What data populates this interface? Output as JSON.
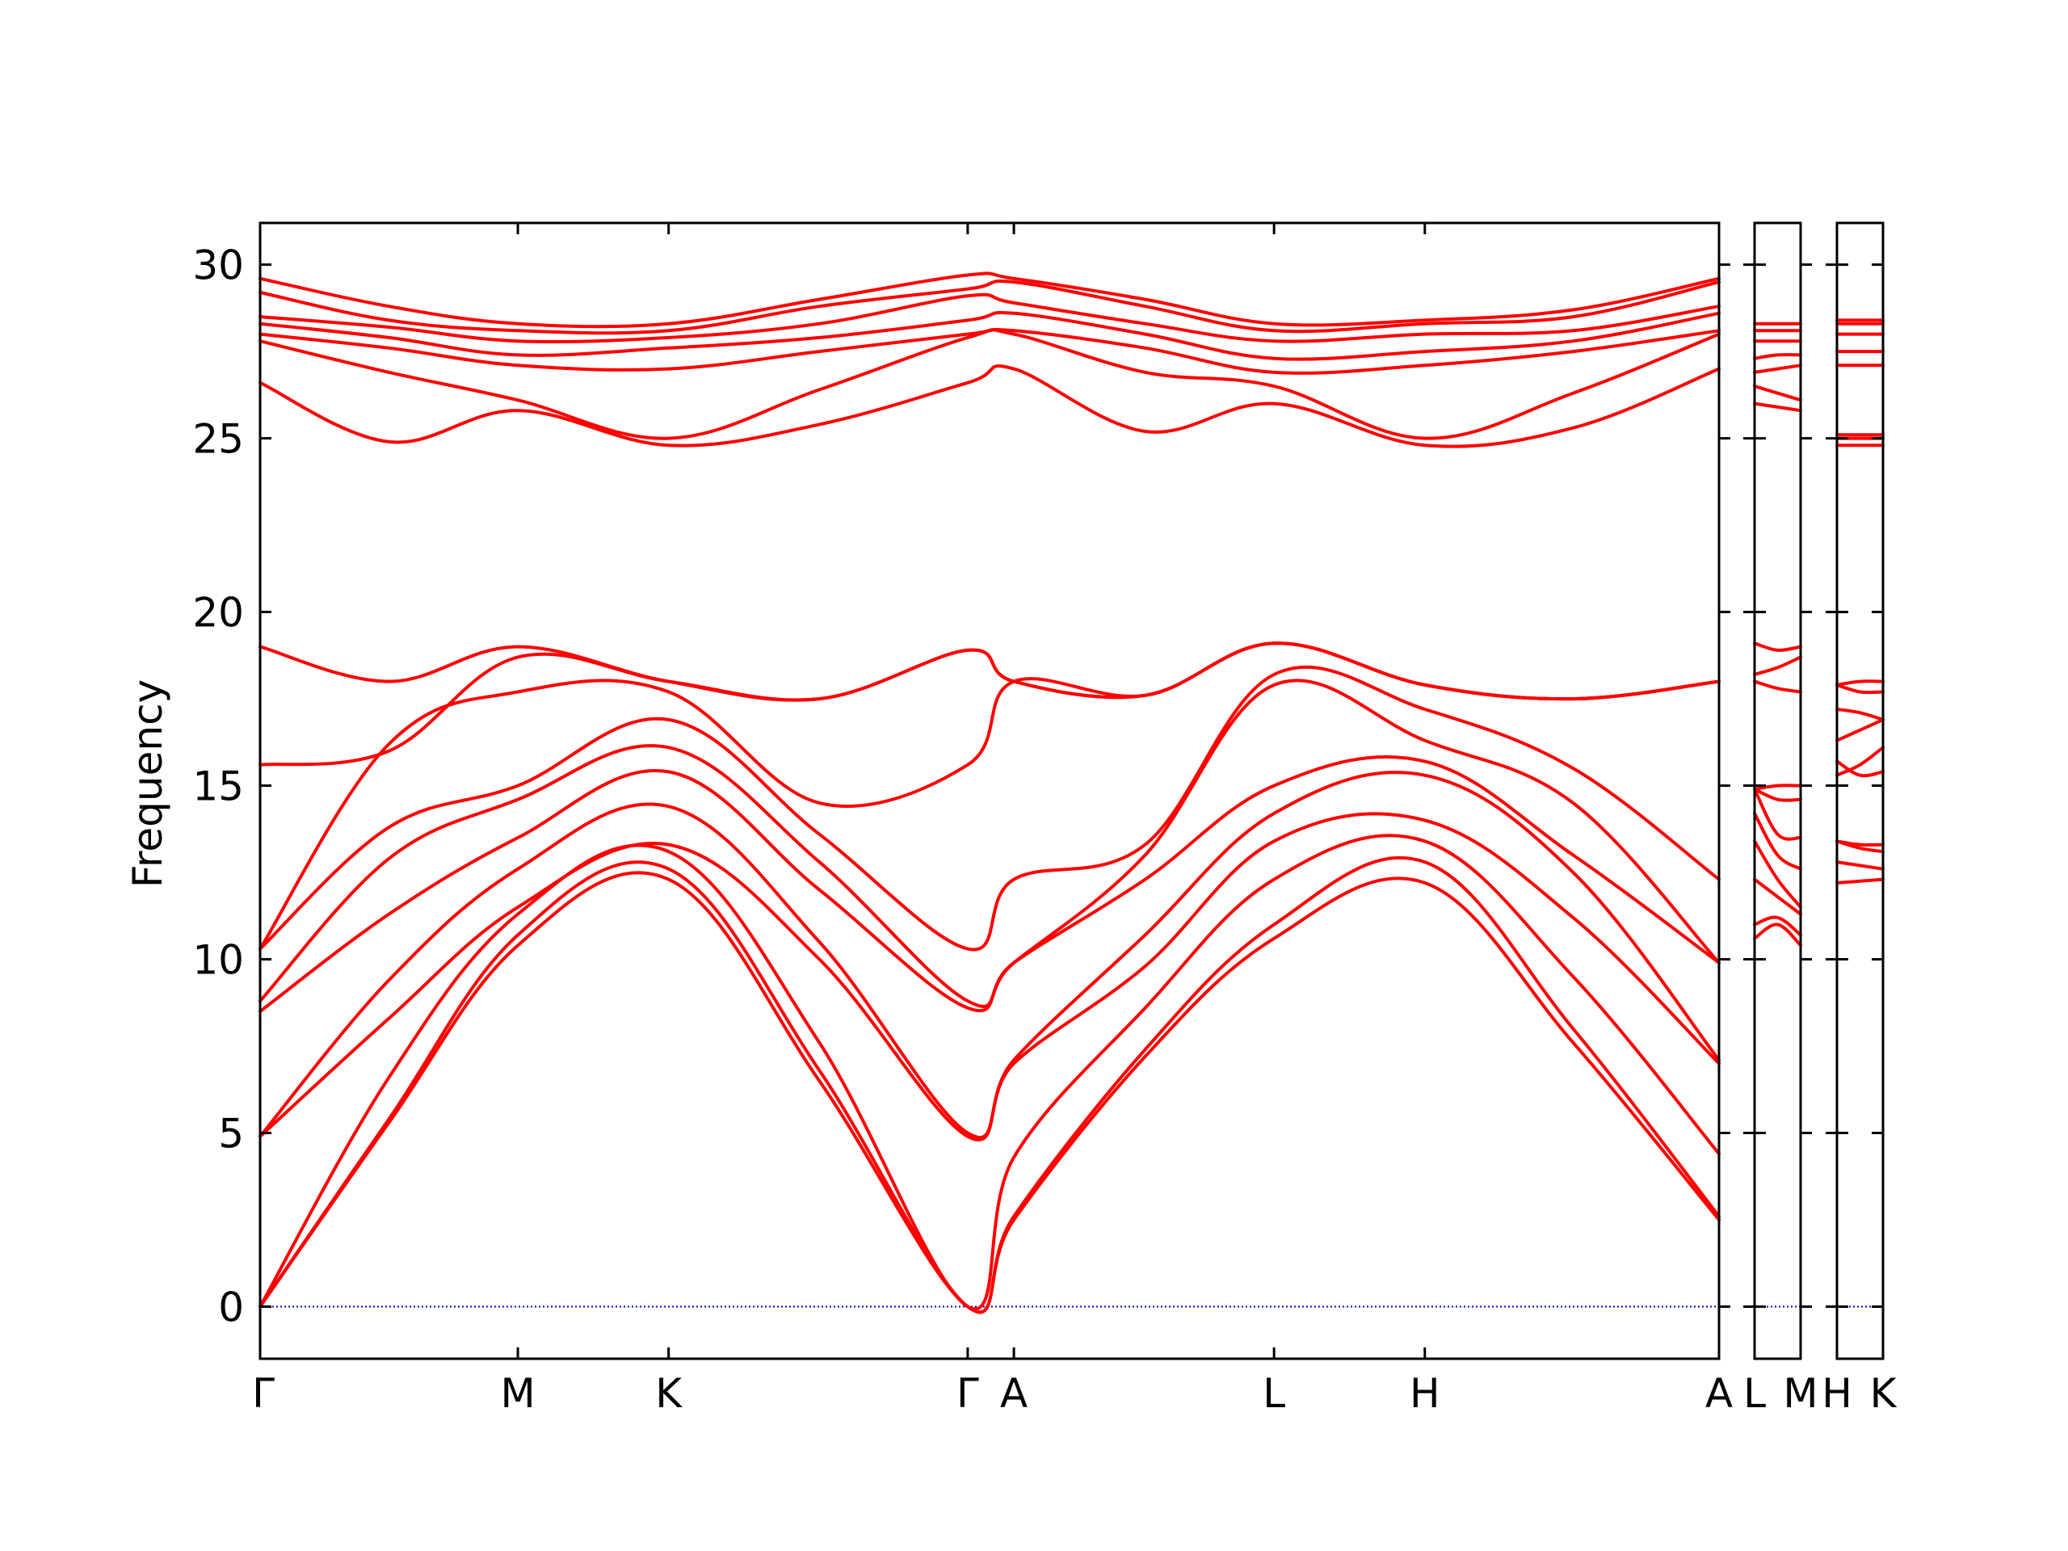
{
  "chart_data": {
    "type": "line",
    "title": "",
    "xlabel": "",
    "ylabel": "Frequency",
    "ylim": [
      -1.5,
      31.2
    ],
    "yticks": [
      0,
      5,
      10,
      15,
      20,
      25,
      30
    ],
    "grid": false,
    "legend": "none",
    "colors": {
      "band": "#ff0000",
      "zero_line": "#0000cc",
      "frame": "#000000"
    },
    "panels": [
      {
        "name": "main",
        "x": [
          0.0,
          3.0
        ],
        "ticks": [
          {
            "label": "Γ",
            "x": 0.0
          },
          {
            "label": "M",
            "x": 0.53
          },
          {
            "label": "K",
            "x": 0.84
          },
          {
            "label": "Γ",
            "x": 1.455
          },
          {
            "label": "A",
            "x": 1.55
          },
          {
            "label": "L",
            "x": 2.085
          },
          {
            "label": "H",
            "x": 2.395
          },
          {
            "label": "A",
            "x": 3.0
          }
        ],
        "series": [
          {
            "x": [
              0,
              0.265,
              0.53,
              0.84,
              1.15,
              1.455,
              1.55,
              1.82,
              2.085,
              2.395,
              2.7,
              3.0
            ],
            "values": [
              0,
              5.3,
              10.4,
              12.3,
              6.5,
              0,
              2.5,
              7.2,
              10.6,
              12.2,
              7.6,
              2.5
            ]
          },
          {
            "x": [
              0,
              0.265,
              0.53,
              0.84,
              1.15,
              1.455,
              1.55,
              1.82,
              2.085,
              2.395,
              2.7,
              3.0
            ],
            "values": [
              0,
              5.4,
              10.7,
              12.6,
              6.8,
              0,
              2.6,
              7.4,
              11.0,
              12.8,
              8.0,
              2.6
            ]
          },
          {
            "x": [
              0,
              0.265,
              0.53,
              0.84,
              1.15,
              1.455,
              1.55,
              1.82,
              2.085,
              2.395,
              2.7,
              3.0
            ],
            "values": [
              0,
              6.6,
              11.3,
              13.1,
              7.6,
              0,
              4.3,
              8.6,
              12.3,
              13.4,
              9.5,
              4.4
            ]
          },
          {
            "x": [
              0,
              0.265,
              0.53,
              0.84,
              1.15,
              1.455,
              1.55,
              1.82,
              2.085,
              2.395,
              2.7,
              3.0
            ],
            "values": [
              4.9,
              8.3,
              11.5,
              13.3,
              10.0,
              4.9,
              7.0,
              9.8,
              13.4,
              14.0,
              11.2,
              7.0
            ]
          },
          {
            "x": [
              0,
              0.265,
              0.53,
              0.84,
              1.15,
              1.455,
              1.55,
              1.82,
              2.085,
              2.395,
              2.7,
              3.0
            ],
            "values": [
              4.9,
              9.4,
              12.6,
              14.4,
              10.5,
              5.0,
              7.1,
              10.7,
              14.2,
              15.3,
              12.5,
              7.1
            ]
          },
          {
            "x": [
              0,
              0.265,
              0.53,
              0.84,
              1.15,
              1.455,
              1.55,
              1.82,
              2.085,
              2.395,
              2.7,
              3.0
            ],
            "values": [
              8.5,
              11.3,
              13.5,
              15.4,
              12.0,
              8.6,
              9.9,
              12.3,
              15.0,
              15.7,
              13.0,
              9.9
            ]
          },
          {
            "x": [
              0,
              0.265,
              0.53,
              0.84,
              1.15,
              1.455,
              1.55,
              1.82,
              2.085,
              2.395,
              2.7,
              3.0
            ],
            "values": [
              8.8,
              12.9,
              14.6,
              16.1,
              12.8,
              8.8,
              9.9,
              13.0,
              17.9,
              16.3,
              14.5,
              9.9
            ]
          },
          {
            "x": [
              0,
              0.265,
              0.53,
              0.84,
              1.15,
              1.455,
              1.55,
              1.82,
              2.085,
              2.395,
              2.7,
              3.0
            ],
            "values": [
              10.3,
              13.8,
              15.0,
              16.9,
              13.6,
              10.3,
              12.3,
              13.3,
              18.2,
              17.2,
              15.5,
              12.3
            ]
          },
          {
            "x": [
              0,
              0.265,
              0.53,
              0.84,
              1.15,
              1.455,
              1.55,
              1.82,
              2.085,
              2.395,
              2.7,
              3.0
            ],
            "values": [
              10.3,
              16.2,
              17.7,
              17.7,
              14.5,
              15.6,
              18.0,
              17.6,
              19.1,
              17.9,
              17.5,
              18.0
            ]
          },
          {
            "x": [
              0,
              0.265,
              0.53,
              0.84,
              1.15,
              1.455,
              1.55,
              1.82,
              2.085,
              2.395,
              2.7,
              3.0
            ],
            "values": [
              15.6,
              16.0,
              18.7,
              18.0,
              17.5,
              18.9,
              18.0,
              17.6,
              19.1,
              17.9,
              17.5,
              18.0
            ]
          },
          {
            "x": [
              0,
              0.265,
              0.53,
              0.84,
              1.15,
              1.455,
              1.55,
              1.82,
              2.085,
              2.395,
              2.7,
              3.0
            ],
            "values": [
              19.0,
              18.0,
              19.0,
              18.0,
              17.5,
              18.9,
              18.0,
              17.6,
              19.1,
              17.9,
              17.5,
              18.0
            ]
          },
          {
            "x": [
              0,
              0.265,
              0.53,
              0.84,
              1.15,
              1.455,
              1.55,
              1.82,
              2.085,
              2.395,
              2.7,
              3.0
            ],
            "values": [
              26.6,
              24.9,
              25.8,
              24.8,
              25.4,
              26.6,
              27.0,
              25.2,
              26.0,
              24.8,
              25.3,
              27.0
            ]
          },
          {
            "x": [
              0,
              0.265,
              0.53,
              0.84,
              1.15,
              1.455,
              1.55,
              1.82,
              2.085,
              2.395,
              2.7,
              3.0
            ],
            "values": [
              27.8,
              26.9,
              26.1,
              25.0,
              26.4,
              27.9,
              28.0,
              26.9,
              26.5,
              25.0,
              26.3,
              28.0
            ]
          },
          {
            "x": [
              0,
              0.265,
              0.53,
              0.84,
              1.15,
              1.455,
              1.55,
              1.82,
              2.085,
              2.395,
              2.7,
              3.0
            ],
            "values": [
              28.0,
              27.6,
              27.1,
              27.0,
              27.5,
              28.0,
              28.1,
              27.6,
              26.9,
              27.1,
              27.5,
              28.1
            ]
          },
          {
            "x": [
              0,
              0.265,
              0.53,
              0.84,
              1.15,
              1.455,
              1.55,
              1.82,
              2.085,
              2.395,
              2.7,
              3.0
            ],
            "values": [
              28.3,
              27.9,
              27.4,
              27.6,
              27.9,
              28.4,
              28.6,
              28.0,
              27.3,
              27.5,
              27.8,
              28.6
            ]
          },
          {
            "x": [
              0,
              0.265,
              0.53,
              0.84,
              1.15,
              1.455,
              1.55,
              1.82,
              2.085,
              2.395,
              2.7,
              3.0
            ],
            "values": [
              28.5,
              28.2,
              27.8,
              27.9,
              28.3,
              29.1,
              28.9,
              28.3,
              27.8,
              28.0,
              28.1,
              28.8
            ]
          },
          {
            "x": [
              0,
              0.265,
              0.53,
              0.84,
              1.15,
              1.455,
              1.55,
              1.82,
              2.085,
              2.395,
              2.7,
              3.0
            ],
            "values": [
              29.2,
              28.4,
              28.1,
              28.1,
              28.8,
              29.3,
              29.5,
              28.8,
              28.1,
              28.3,
              28.5,
              29.5
            ]
          },
          {
            "x": [
              0,
              0.265,
              0.53,
              0.84,
              1.15,
              1.455,
              1.55,
              1.82,
              2.085,
              2.395,
              2.7,
              3.0
            ],
            "values": [
              29.6,
              28.8,
              28.3,
              28.3,
              29.0,
              29.7,
              29.6,
              29.0,
              28.3,
              28.4,
              28.7,
              29.6
            ]
          }
        ]
      },
      {
        "name": "L-M",
        "x": [
          0.0,
          1.0
        ],
        "ticks": [
          {
            "label": "L",
            "x": 0.0
          },
          {
            "label": "M",
            "x": 1.0
          }
        ],
        "series": [
          {
            "x": [
              0,
              0.5,
              1
            ],
            "values": [
              10.6,
              11.0,
              10.4
            ]
          },
          {
            "x": [
              0,
              0.5,
              1
            ],
            "values": [
              11.0,
              11.2,
              10.7
            ]
          },
          {
            "x": [
              0,
              0.5,
              1
            ],
            "values": [
              12.3,
              11.8,
              11.3
            ]
          },
          {
            "x": [
              0,
              0.5,
              1
            ],
            "values": [
              13.4,
              12.3,
              11.5
            ]
          },
          {
            "x": [
              0,
              0.5,
              1
            ],
            "values": [
              14.2,
              13.0,
              12.6
            ]
          },
          {
            "x": [
              0,
              0.5,
              1
            ],
            "values": [
              14.9,
              13.6,
              13.5
            ]
          },
          {
            "x": [
              0,
              0.5,
              1
            ],
            "values": [
              14.9,
              14.6,
              14.6
            ]
          },
          {
            "x": [
              0,
              0.5,
              1
            ],
            "values": [
              14.9,
              15.0,
              15.0
            ]
          },
          {
            "x": [
              0,
              0.5,
              1
            ],
            "values": [
              18.0,
              17.8,
              17.7
            ]
          },
          {
            "x": [
              0,
              0.5,
              1
            ],
            "values": [
              18.2,
              18.4,
              18.7
            ]
          },
          {
            "x": [
              0,
              0.5,
              1
            ],
            "values": [
              19.1,
              18.9,
              19.0
            ]
          },
          {
            "x": [
              0,
              0.5,
              1
            ],
            "values": [
              26.0,
              25.9,
              25.8
            ]
          },
          {
            "x": [
              0,
              0.5,
              1
            ],
            "values": [
              26.5,
              26.3,
              26.1
            ]
          },
          {
            "x": [
              0,
              0.5,
              1
            ],
            "values": [
              26.9,
              27.0,
              27.1
            ]
          },
          {
            "x": [
              0,
              0.5,
              1
            ],
            "values": [
              27.3,
              27.4,
              27.4
            ]
          },
          {
            "x": [
              0,
              0.5,
              1
            ],
            "values": [
              27.8,
              27.8,
              27.8
            ]
          },
          {
            "x": [
              0,
              0.5,
              1
            ],
            "values": [
              28.1,
              28.1,
              28.1
            ]
          },
          {
            "x": [
              0,
              0.5,
              1
            ],
            "values": [
              28.3,
              28.3,
              28.3
            ]
          }
        ]
      },
      {
        "name": "H-K",
        "x": [
          0.0,
          1.0
        ],
        "ticks": [
          {
            "label": "H",
            "x": 0.0
          },
          {
            "label": "K",
            "x": 1.0
          }
        ],
        "series": [
          {
            "x": [
              0,
              0.5,
              1
            ],
            "values": [
              12.2,
              12.25,
              12.3
            ]
          },
          {
            "x": [
              0,
              0.5,
              1
            ],
            "values": [
              12.8,
              12.7,
              12.6
            ]
          },
          {
            "x": [
              0,
              0.5,
              1
            ],
            "values": [
              13.4,
              13.2,
              13.1
            ]
          },
          {
            "x": [
              0,
              0.5,
              1
            ],
            "values": [
              13.4,
              13.3,
              13.3
            ]
          },
          {
            "x": [
              0,
              0.5,
              1
            ],
            "values": [
              15.3,
              15.6,
              16.1
            ]
          },
          {
            "x": [
              0,
              0.5,
              1
            ],
            "values": [
              15.7,
              15.3,
              15.4
            ]
          },
          {
            "x": [
              0,
              0.5,
              1
            ],
            "values": [
              16.3,
              16.6,
              16.9
            ]
          },
          {
            "x": [
              0,
              0.5,
              1
            ],
            "values": [
              17.2,
              17.1,
              16.9
            ]
          },
          {
            "x": [
              0,
              0.5,
              1
            ],
            "values": [
              17.9,
              17.7,
              17.7
            ]
          },
          {
            "x": [
              0,
              0.5,
              1
            ],
            "values": [
              17.9,
              18.0,
              18.0
            ]
          },
          {
            "x": [
              0,
              0.5,
              1
            ],
            "values": [
              24.8,
              24.8,
              24.8
            ]
          },
          {
            "x": [
              0,
              0.5,
              1
            ],
            "values": [
              25.0,
              25.0,
              25.0
            ]
          },
          {
            "x": [
              0,
              0.5,
              1
            ],
            "values": [
              25.1,
              25.1,
              25.1
            ]
          },
          {
            "x": [
              0,
              0.5,
              1
            ],
            "values": [
              27.1,
              27.1,
              27.1
            ]
          },
          {
            "x": [
              0,
              0.5,
              1
            ],
            "values": [
              27.5,
              27.5,
              27.5
            ]
          },
          {
            "x": [
              0,
              0.5,
              1
            ],
            "values": [
              28.0,
              28.0,
              28.0
            ]
          },
          {
            "x": [
              0,
              0.5,
              1
            ],
            "values": [
              28.3,
              28.3,
              28.3
            ]
          },
          {
            "x": [
              0,
              0.5,
              1
            ],
            "values": [
              28.4,
              28.4,
              28.4
            ]
          }
        ]
      }
    ]
  }
}
